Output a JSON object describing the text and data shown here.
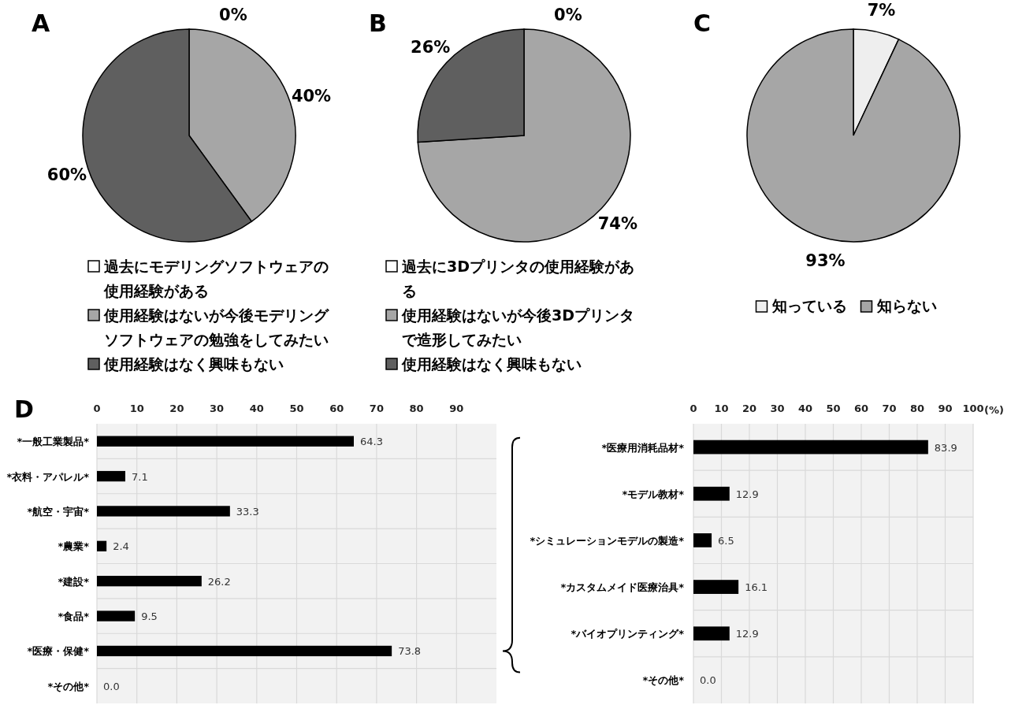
{
  "chart_data": [
    {
      "type": "pie",
      "title": "A",
      "categories": [
        "過去にモデリングソフトウェアの使用経験がある",
        "使用経験はないが今後モデリングソフトウェアの勉強をしてみたい",
        "使用経験はなく興味もない"
      ],
      "values": [
        0,
        40,
        60
      ],
      "colors": [
        "#ffffff",
        "#a6a6a6",
        "#5f5f5f"
      ],
      "value_labels": [
        "0%",
        "40%",
        "60%"
      ],
      "legend": "bottom"
    },
    {
      "type": "pie",
      "title": "B",
      "categories": [
        "過去に3Dプリンタの使用経験がある",
        "使用経験はないが今後3Dプリンタで造形してみたい",
        "使用経験はなく興味もない"
      ],
      "values": [
        0,
        74,
        26
      ],
      "colors": [
        "#ffffff",
        "#a6a6a6",
        "#5f5f5f"
      ],
      "value_labels": [
        "0%",
        "74%",
        "26%"
      ],
      "legend": "bottom"
    },
    {
      "type": "pie",
      "title": "C",
      "categories": [
        "知っている",
        "知らない"
      ],
      "values": [
        7,
        93
      ],
      "colors": [
        "#eeeeee",
        "#a6a6a6"
      ],
      "value_labels": [
        "7%",
        "93%"
      ],
      "legend": "bottom"
    },
    {
      "type": "bar",
      "orientation": "horizontal",
      "title": "D",
      "categories": [
        "*一般工業製品*",
        "*衣料・アパレル*",
        "*航空・宇宙*",
        "*農業*",
        "*建設*",
        "*食品*",
        "*医療・保健*",
        "*その他*"
      ],
      "values": [
        64.3,
        7.1,
        33.3,
        2.4,
        26.2,
        9.5,
        73.8,
        0.0
      ],
      "value_labels": [
        "64.3",
        "7.1",
        "33.3",
        "2.4",
        "26.2",
        "9.5",
        "73.8",
        "0.0"
      ],
      "color": "#000000",
      "xlim": [
        0,
        100
      ],
      "xticks": [
        0,
        10,
        20,
        30,
        40,
        50,
        60,
        70,
        80,
        90
      ],
      "grid": true
    },
    {
      "type": "bar",
      "orientation": "horizontal",
      "categories": [
        "*医療用消耗品材*",
        "*モデル教材*",
        "*シミュレーションモデルの製造*",
        "*カスタムメイド医療治具*",
        "*バイオプリンティング*",
        "*その他*"
      ],
      "values": [
        83.9,
        12.9,
        6.5,
        16.1,
        12.9,
        0.0
      ],
      "value_labels": [
        "83.9",
        "12.9",
        "6.5",
        "16.1",
        "12.9",
        "0.0"
      ],
      "color": "#000000",
      "xlim": [
        0,
        100
      ],
      "xticks": [
        0,
        10,
        20,
        30,
        40,
        50,
        60,
        70,
        80,
        90,
        100
      ],
      "xlabel": "(%)",
      "grid": true
    }
  ]
}
